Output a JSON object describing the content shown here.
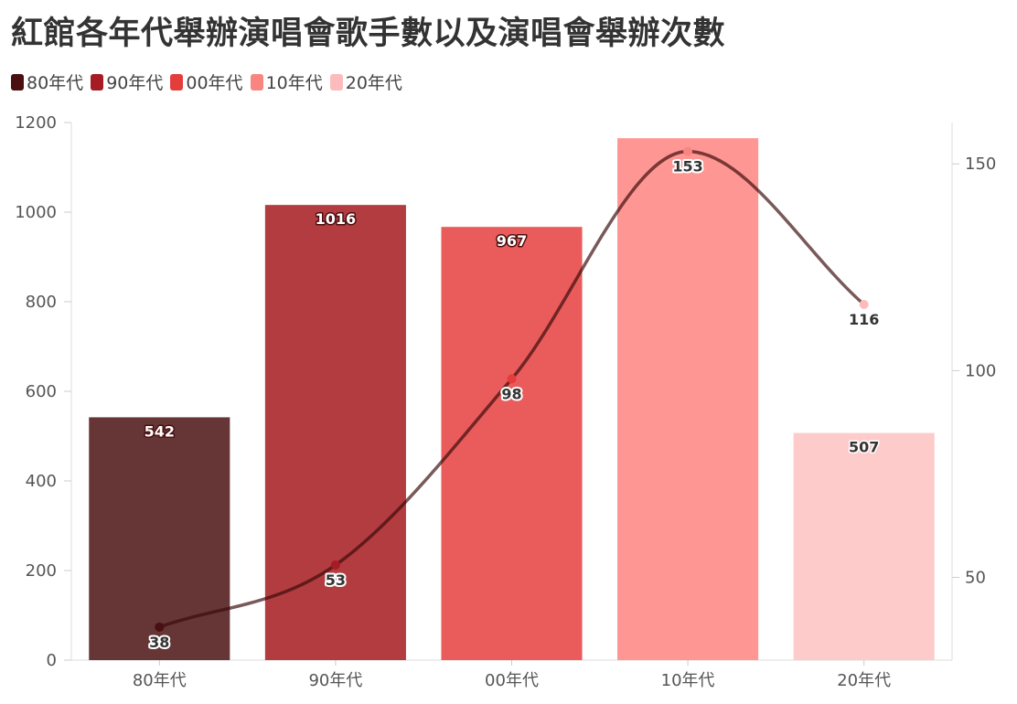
{
  "chart_data": {
    "type": "bar+line",
    "title": "紅館各年代舉辦演唱會歌手數以及演唱會舉辦次數",
    "categories": [
      "80年代",
      "90年代",
      "00年代",
      "10年代",
      "20年代"
    ],
    "colors": [
      "#4a0f10",
      "#a51c24",
      "#e33d3c",
      "#f98580",
      "#fcbcbd"
    ],
    "bar_colors": [
      "#663535",
      "#b33c40",
      "#e95c5b",
      "#fe9694",
      "#fecbcb"
    ],
    "label_fills": [
      "#ffffff",
      "#ffffff",
      "#ffffff",
      "#333333",
      "#333333"
    ],
    "bars": {
      "name": "演唱會舉辦次數",
      "axis": "left",
      "values": [
        542,
        1016,
        967,
        1165,
        507
      ],
      "labels": [
        "542",
        "1016",
        "967",
        "",
        "507"
      ]
    },
    "line": {
      "name": "歌手數",
      "axis": "right",
      "values": [
        38,
        53,
        98,
        153,
        116
      ],
      "labels": [
        "38",
        "53",
        "98",
        "153",
        "116"
      ]
    },
    "y_left": {
      "range": [
        0,
        1200
      ],
      "ticks": [
        0,
        200,
        400,
        600,
        800,
        1000,
        1200
      ]
    },
    "y_right": {
      "range": [
        30,
        160
      ],
      "ticks": [
        50,
        100,
        150
      ]
    },
    "legend_position": "top-left"
  }
}
